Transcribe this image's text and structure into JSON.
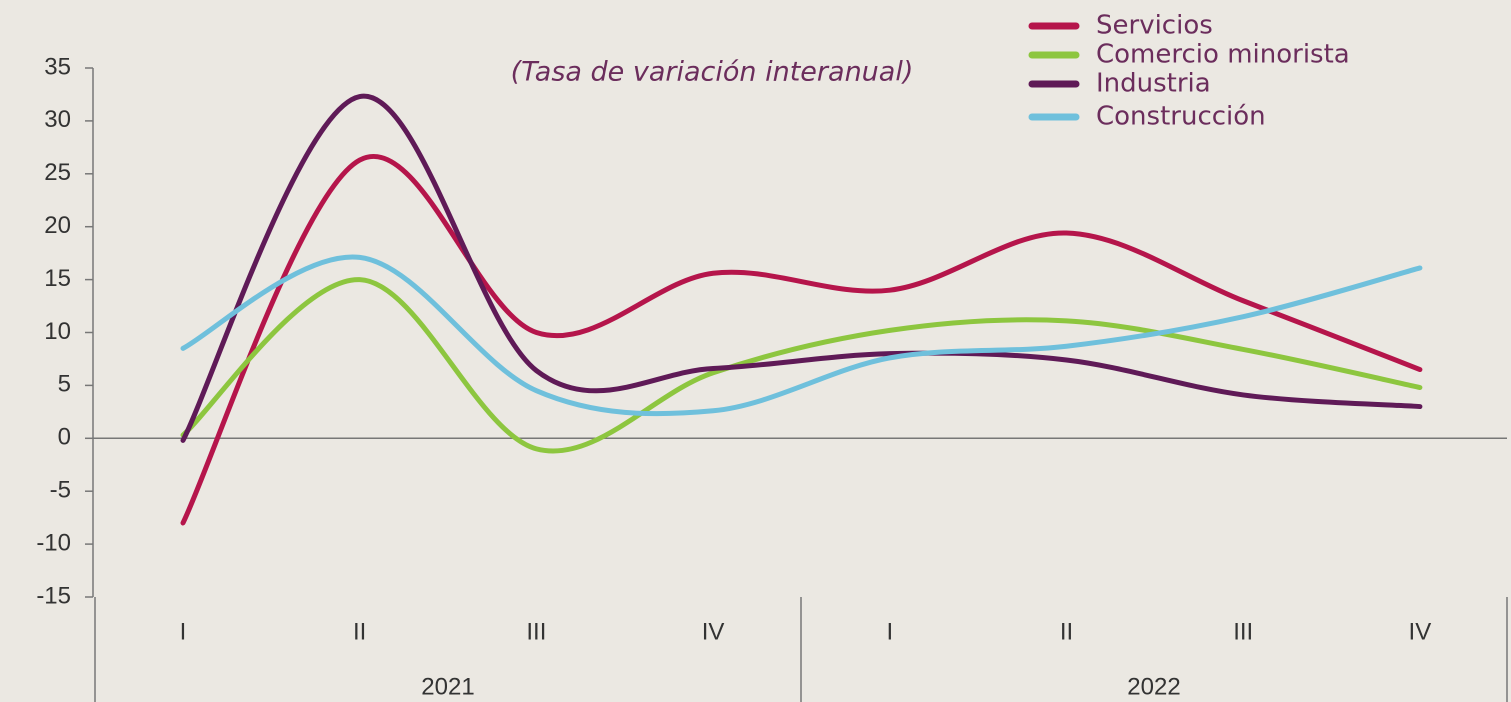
{
  "chart_data": {
    "type": "line",
    "subtitle": "(Tasa de variación interanual)",
    "categories": [
      "I",
      "II",
      "III",
      "IV",
      "I",
      "II",
      "III",
      "IV"
    ],
    "category_groups": [
      "2021",
      "2022"
    ],
    "series": [
      {
        "name": "Servicios",
        "color": "#b5154b",
        "values": [
          -8,
          26.3,
          10,
          15.6,
          14,
          19.4,
          13,
          6.5
        ]
      },
      {
        "name": "Comercio minorista",
        "color": "#8dc63f",
        "values": [
          0.3,
          15,
          -1,
          6.2,
          10.2,
          11.1,
          8.4,
          4.8
        ]
      },
      {
        "name": "Industria",
        "color": "#5f1a57",
        "values": [
          -0.2,
          32.3,
          6.4,
          6.6,
          8,
          7.4,
          4.1,
          3
        ]
      },
      {
        "name": "Construcción",
        "color": "#6fc0dc",
        "values": [
          8.5,
          17.1,
          4.5,
          2.6,
          7.6,
          8.7,
          11.5,
          16.1
        ]
      }
    ],
    "ylim": [
      -15,
      35
    ],
    "yticks": [
      -15,
      -10,
      -5,
      0,
      5,
      10,
      15,
      20,
      25,
      30,
      35
    ],
    "legend": "top-right"
  }
}
